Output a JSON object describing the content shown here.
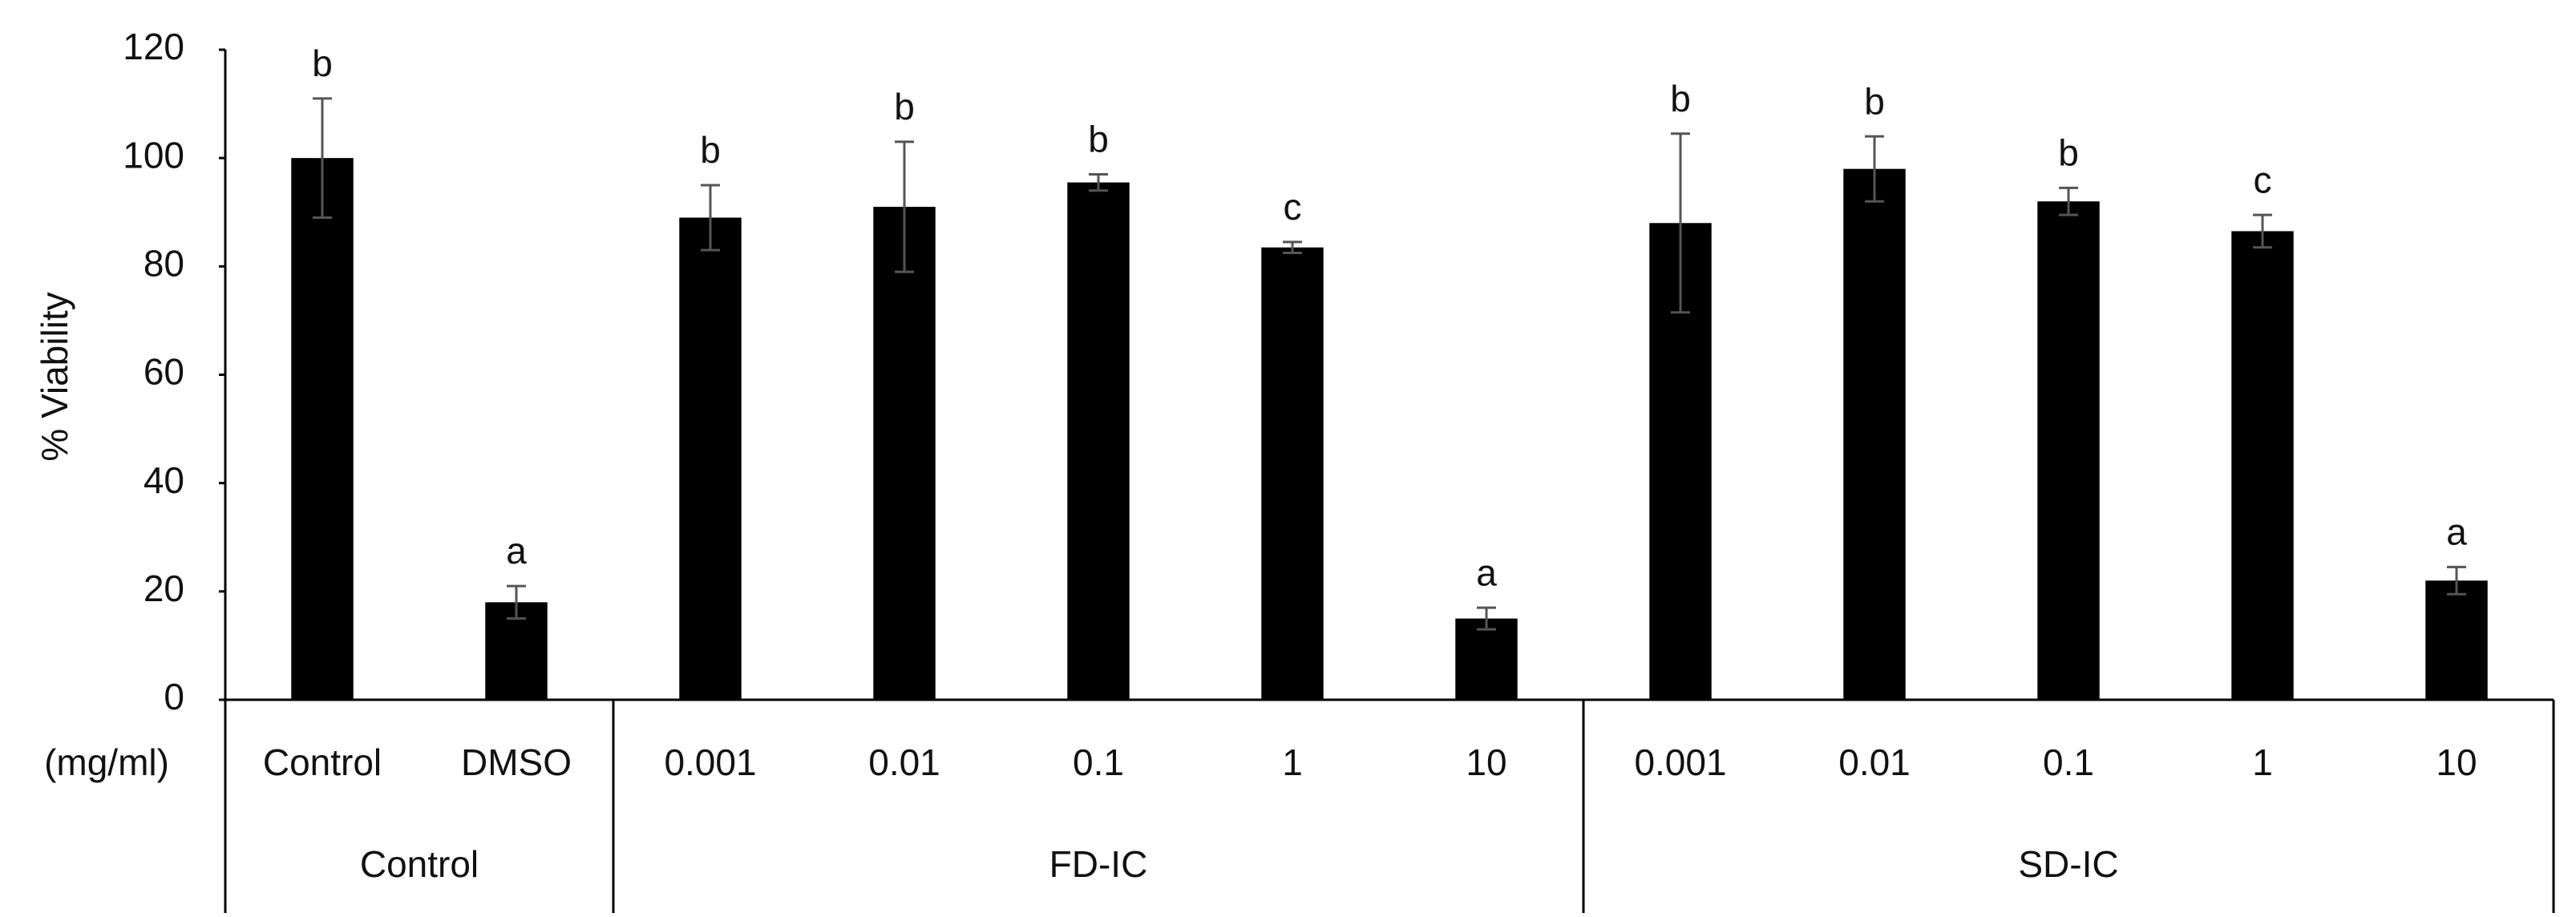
{
  "chart_data": {
    "type": "bar",
    "y_label": "% Viability",
    "x_unit_label": "(mg/ml)",
    "ylim": [
      0,
      120
    ],
    "yticks": [
      0,
      20,
      40,
      60,
      80,
      100,
      120
    ],
    "color": "#000000",
    "error_color": "#555555",
    "groups": [
      {
        "name": "Control",
        "categories": [
          "Control",
          "DMSO"
        ],
        "values": [
          100,
          18
        ],
        "errors": [
          11,
          3
        ],
        "letters": [
          "b",
          "a"
        ]
      },
      {
        "name": "FD-IC",
        "categories": [
          "0.001",
          "0.01",
          "0.1",
          "1",
          "10"
        ],
        "values": [
          89,
          91,
          95.5,
          83.5,
          15
        ],
        "errors": [
          6,
          12,
          1.5,
          1,
          2
        ],
        "letters": [
          "b",
          "b",
          "b",
          "c",
          "a"
        ]
      },
      {
        "name": "SD-IC",
        "categories": [
          "0.001",
          "0.01",
          "0.1",
          "1",
          "10"
        ],
        "values": [
          88,
          98,
          92,
          86.5,
          22
        ],
        "errors": [
          16.5,
          6,
          2.5,
          3,
          2.5
        ],
        "letters": [
          "b",
          "b",
          "b",
          "c",
          "a"
        ]
      }
    ]
  }
}
